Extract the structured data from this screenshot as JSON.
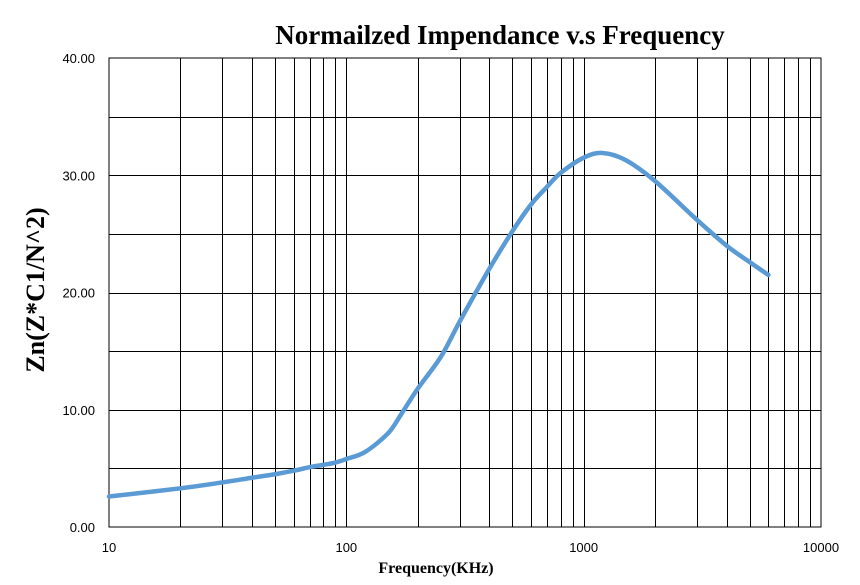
{
  "chart_data": {
    "type": "line",
    "title": "Normailzed Impendance v.s Frequency",
    "xlabel": "Frequency(KHz)",
    "ylabel": "Zn(Z*C1/N^2)",
    "x_scale": "log",
    "xlim": [
      10,
      10000
    ],
    "ylim": [
      0,
      40
    ],
    "x_ticks": [
      "10",
      "100",
      "1000",
      "10000"
    ],
    "y_ticks": [
      "0.00",
      "10.00",
      "20.00",
      "30.00",
      "40.00"
    ],
    "grid": true,
    "legend": "none",
    "line_color": "#5b9bd5",
    "series": [
      {
        "x": [
          10,
          20,
          30,
          40,
          50,
          60,
          70,
          80,
          90,
          100,
          120,
          150,
          170,
          200,
          250,
          300,
          400,
          500,
          600,
          700,
          800,
          1000,
          1200,
          1500,
          2000,
          3000,
          4000,
          5000,
          6000
        ],
        "y": [
          2.6,
          3.3,
          3.8,
          4.2,
          4.5,
          4.8,
          5.1,
          5.3,
          5.5,
          5.8,
          6.4,
          8.0,
          9.6,
          11.8,
          14.5,
          17.5,
          22.0,
          25.2,
          27.5,
          29.0,
          30.2,
          31.5,
          31.9,
          31.3,
          29.5,
          26.2,
          24.0,
          22.6,
          21.5
        ]
      }
    ]
  }
}
